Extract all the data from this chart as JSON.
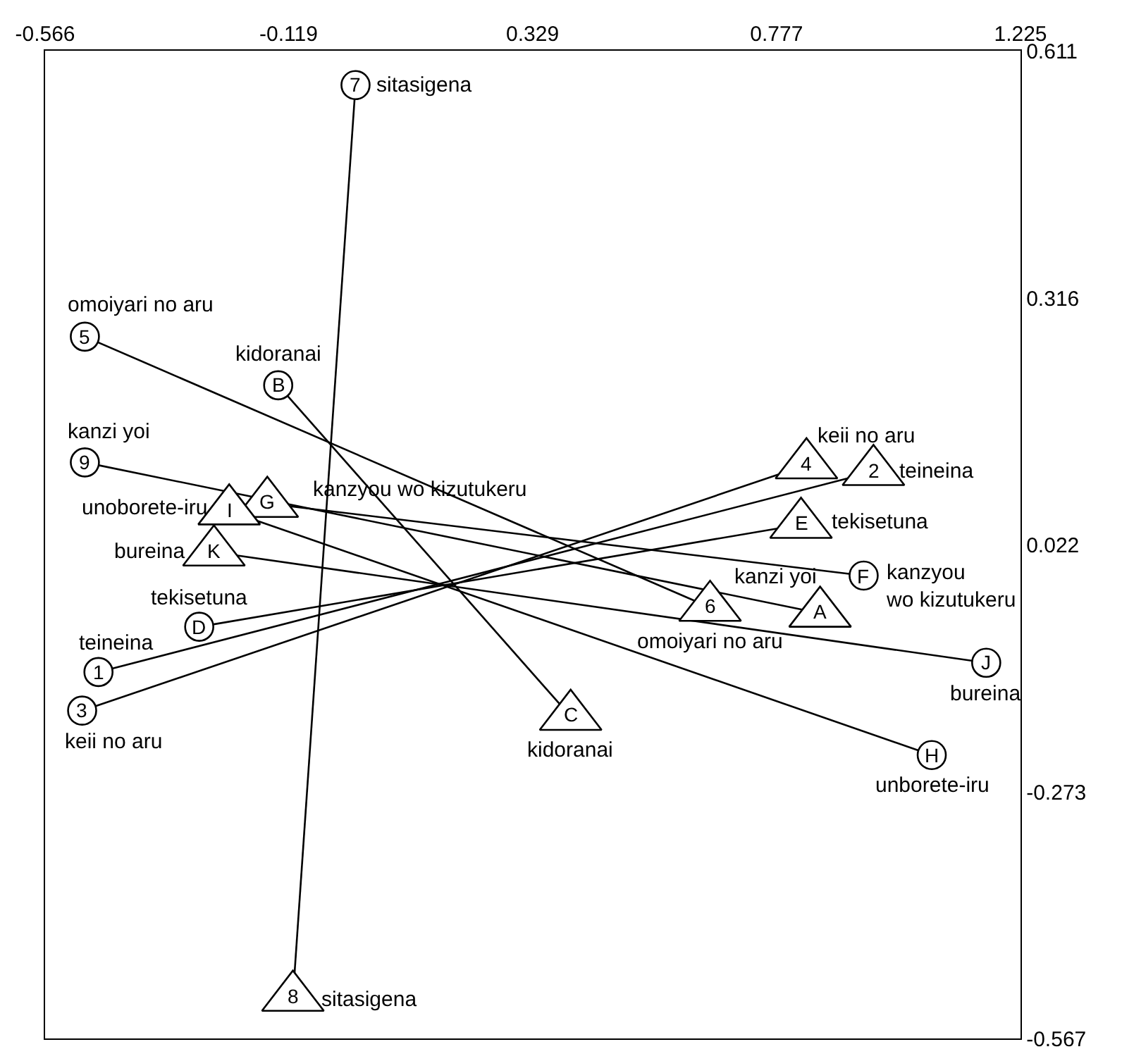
{
  "chart_data": {
    "type": "scatter",
    "xlim": [
      -0.566,
      1.225
    ],
    "xticks": [
      -0.566,
      -0.119,
      0.329,
      0.777,
      1.225
    ],
    "ylim": [
      -0.567,
      0.611
    ],
    "yticks": [
      -0.567,
      -0.273,
      0.022,
      0.316,
      0.611
    ],
    "grid": false,
    "series": [
      {
        "type": "line",
        "color": "#000000",
        "marker": "none",
        "line_style": "solid",
        "x": [
          -0.468,
          0.955
        ],
        "values": [
          -0.13,
          0.109
        ]
      },
      {
        "type": "line",
        "color": "#000000",
        "marker": "none",
        "line_style": "solid",
        "x": [
          -0.498,
          0.832
        ],
        "values": [
          -0.176,
          0.117
        ]
      },
      {
        "type": "line",
        "color": "#000000",
        "marker": "none",
        "line_style": "solid",
        "x": [
          -0.493,
          0.655
        ],
        "values": [
          0.27,
          -0.053
        ]
      },
      {
        "type": "line",
        "color": "#000000",
        "marker": "none",
        "line_style": "solid",
        "x": [
          0.004,
          -0.111
        ],
        "values": [
          0.57,
          -0.518
        ]
      },
      {
        "type": "line",
        "color": "#000000",
        "marker": "none",
        "line_style": "solid",
        "x": [
          -0.493,
          0.857
        ],
        "values": [
          0.12,
          -0.06
        ]
      },
      {
        "type": "line",
        "color": "#000000",
        "marker": "none",
        "line_style": "solid",
        "x": [
          -0.138,
          0.399
        ],
        "values": [
          0.212,
          -0.183
        ]
      },
      {
        "type": "line",
        "color": "#000000",
        "marker": "none",
        "line_style": "solid",
        "x": [
          -0.283,
          0.822
        ],
        "values": [
          -0.076,
          0.046
        ]
      },
      {
        "type": "line",
        "color": "#000000",
        "marker": "none",
        "line_style": "solid",
        "x": [
          0.937,
          -0.158
        ],
        "values": [
          -0.015,
          0.071
        ]
      },
      {
        "type": "line",
        "color": "#000000",
        "marker": "none",
        "line_style": "solid",
        "x": [
          1.062,
          -0.228
        ],
        "values": [
          -0.229,
          0.062
        ]
      },
      {
        "type": "line",
        "color": "#000000",
        "marker": "none",
        "line_style": "solid",
        "x": [
          1.162,
          -0.256
        ],
        "values": [
          -0.119,
          0.013
        ]
      },
      {
        "color": "#000000",
        "marker": "circle",
        "x": [
          -0.468,
          -0.498,
          -0.493,
          0.004,
          -0.493,
          -0.138,
          -0.283,
          0.937,
          1.062,
          1.162
        ],
        "values": [
          -0.13,
          -0.176,
          0.27,
          0.57,
          0.12,
          0.212,
          -0.076,
          -0.015,
          -0.229,
          -0.119
        ]
      },
      {
        "color": "#000000",
        "marker": "triangle",
        "x": [
          0.955,
          0.832,
          0.655,
          -0.111,
          0.857,
          0.399,
          0.822,
          -0.158,
          -0.228,
          -0.256
        ],
        "values": [
          0.109,
          0.117,
          -0.053,
          -0.518,
          -0.06,
          -0.183,
          0.046,
          0.071,
          0.062,
          0.013
        ]
      }
    ],
    "annotations": [
      {
        "text": "teineina",
        "x": -0.468,
        "y": -0.13
      },
      {
        "text": "teineina",
        "x": 0.955,
        "y": 0.109
      },
      {
        "text": "keii no aru",
        "x": -0.498,
        "y": -0.176
      },
      {
        "text": "keii no aru",
        "x": 0.832,
        "y": 0.117
      },
      {
        "text": "omoiyari no aru",
        "x": -0.493,
        "y": 0.27
      },
      {
        "text": "omoiyari no aru",
        "x": 0.655,
        "y": -0.053
      },
      {
        "text": "sitasigena",
        "x": 0.004,
        "y": 0.57
      },
      {
        "text": "sitasigena",
        "x": -0.111,
        "y": -0.518
      },
      {
        "text": "kanzi yoi",
        "x": -0.493,
        "y": 0.12
      },
      {
        "text": "kanzi yoi",
        "x": 0.857,
        "y": -0.06
      },
      {
        "text": "kidoranai",
        "x": -0.138,
        "y": 0.212
      },
      {
        "text": "kidoranai",
        "x": 0.399,
        "y": -0.183
      },
      {
        "text": "tekisetuna",
        "x": -0.283,
        "y": -0.076
      },
      {
        "text": "tekisetuna",
        "x": 0.822,
        "y": 0.046
      },
      {
        "text": "kanzyou\nwo kizutukeru",
        "x": 0.937,
        "y": -0.015
      },
      {
        "text": "kanzyou wo kizutukeru",
        "x": -0.158,
        "y": 0.071
      },
      {
        "text": "unborete-iru",
        "x": 1.062,
        "y": -0.229
      },
      {
        "text": "unoborete-iru",
        "x": -0.228,
        "y": 0.062
      },
      {
        "text": "bureina",
        "x": 1.162,
        "y": -0.119
      },
      {
        "text": "bureina",
        "x": -0.256,
        "y": 0.013
      },
      {
        "text": "1",
        "x": -0.468,
        "y": -0.13
      },
      {
        "text": "3",
        "x": -0.498,
        "y": -0.176
      },
      {
        "text": "5",
        "x": -0.493,
        "y": 0.27
      },
      {
        "text": "7",
        "x": 0.004,
        "y": 0.57
      },
      {
        "text": "9",
        "x": -0.493,
        "y": 0.12
      },
      {
        "text": "B",
        "x": -0.138,
        "y": 0.212
      },
      {
        "text": "D",
        "x": -0.283,
        "y": -0.076
      },
      {
        "text": "F",
        "x": 0.937,
        "y": -0.015
      },
      {
        "text": "H",
        "x": 1.062,
        "y": -0.229
      },
      {
        "text": "J",
        "x": 1.162,
        "y": -0.119
      },
      {
        "text": "2",
        "x": 0.955,
        "y": 0.109
      },
      {
        "text": "4",
        "x": 0.832,
        "y": 0.117
      },
      {
        "text": "6",
        "x": 0.655,
        "y": -0.053
      },
      {
        "text": "8",
        "x": -0.111,
        "y": -0.518
      },
      {
        "text": "A",
        "x": 0.857,
        "y": -0.06
      },
      {
        "text": "C",
        "x": 0.399,
        "y": -0.183
      },
      {
        "text": "E",
        "x": 0.822,
        "y": 0.046
      },
      {
        "text": "G",
        "x": -0.158,
        "y": 0.071
      },
      {
        "text": "I",
        "x": -0.228,
        "y": 0.062
      },
      {
        "text": "K",
        "x": -0.256,
        "y": 0.013
      }
    ]
  }
}
